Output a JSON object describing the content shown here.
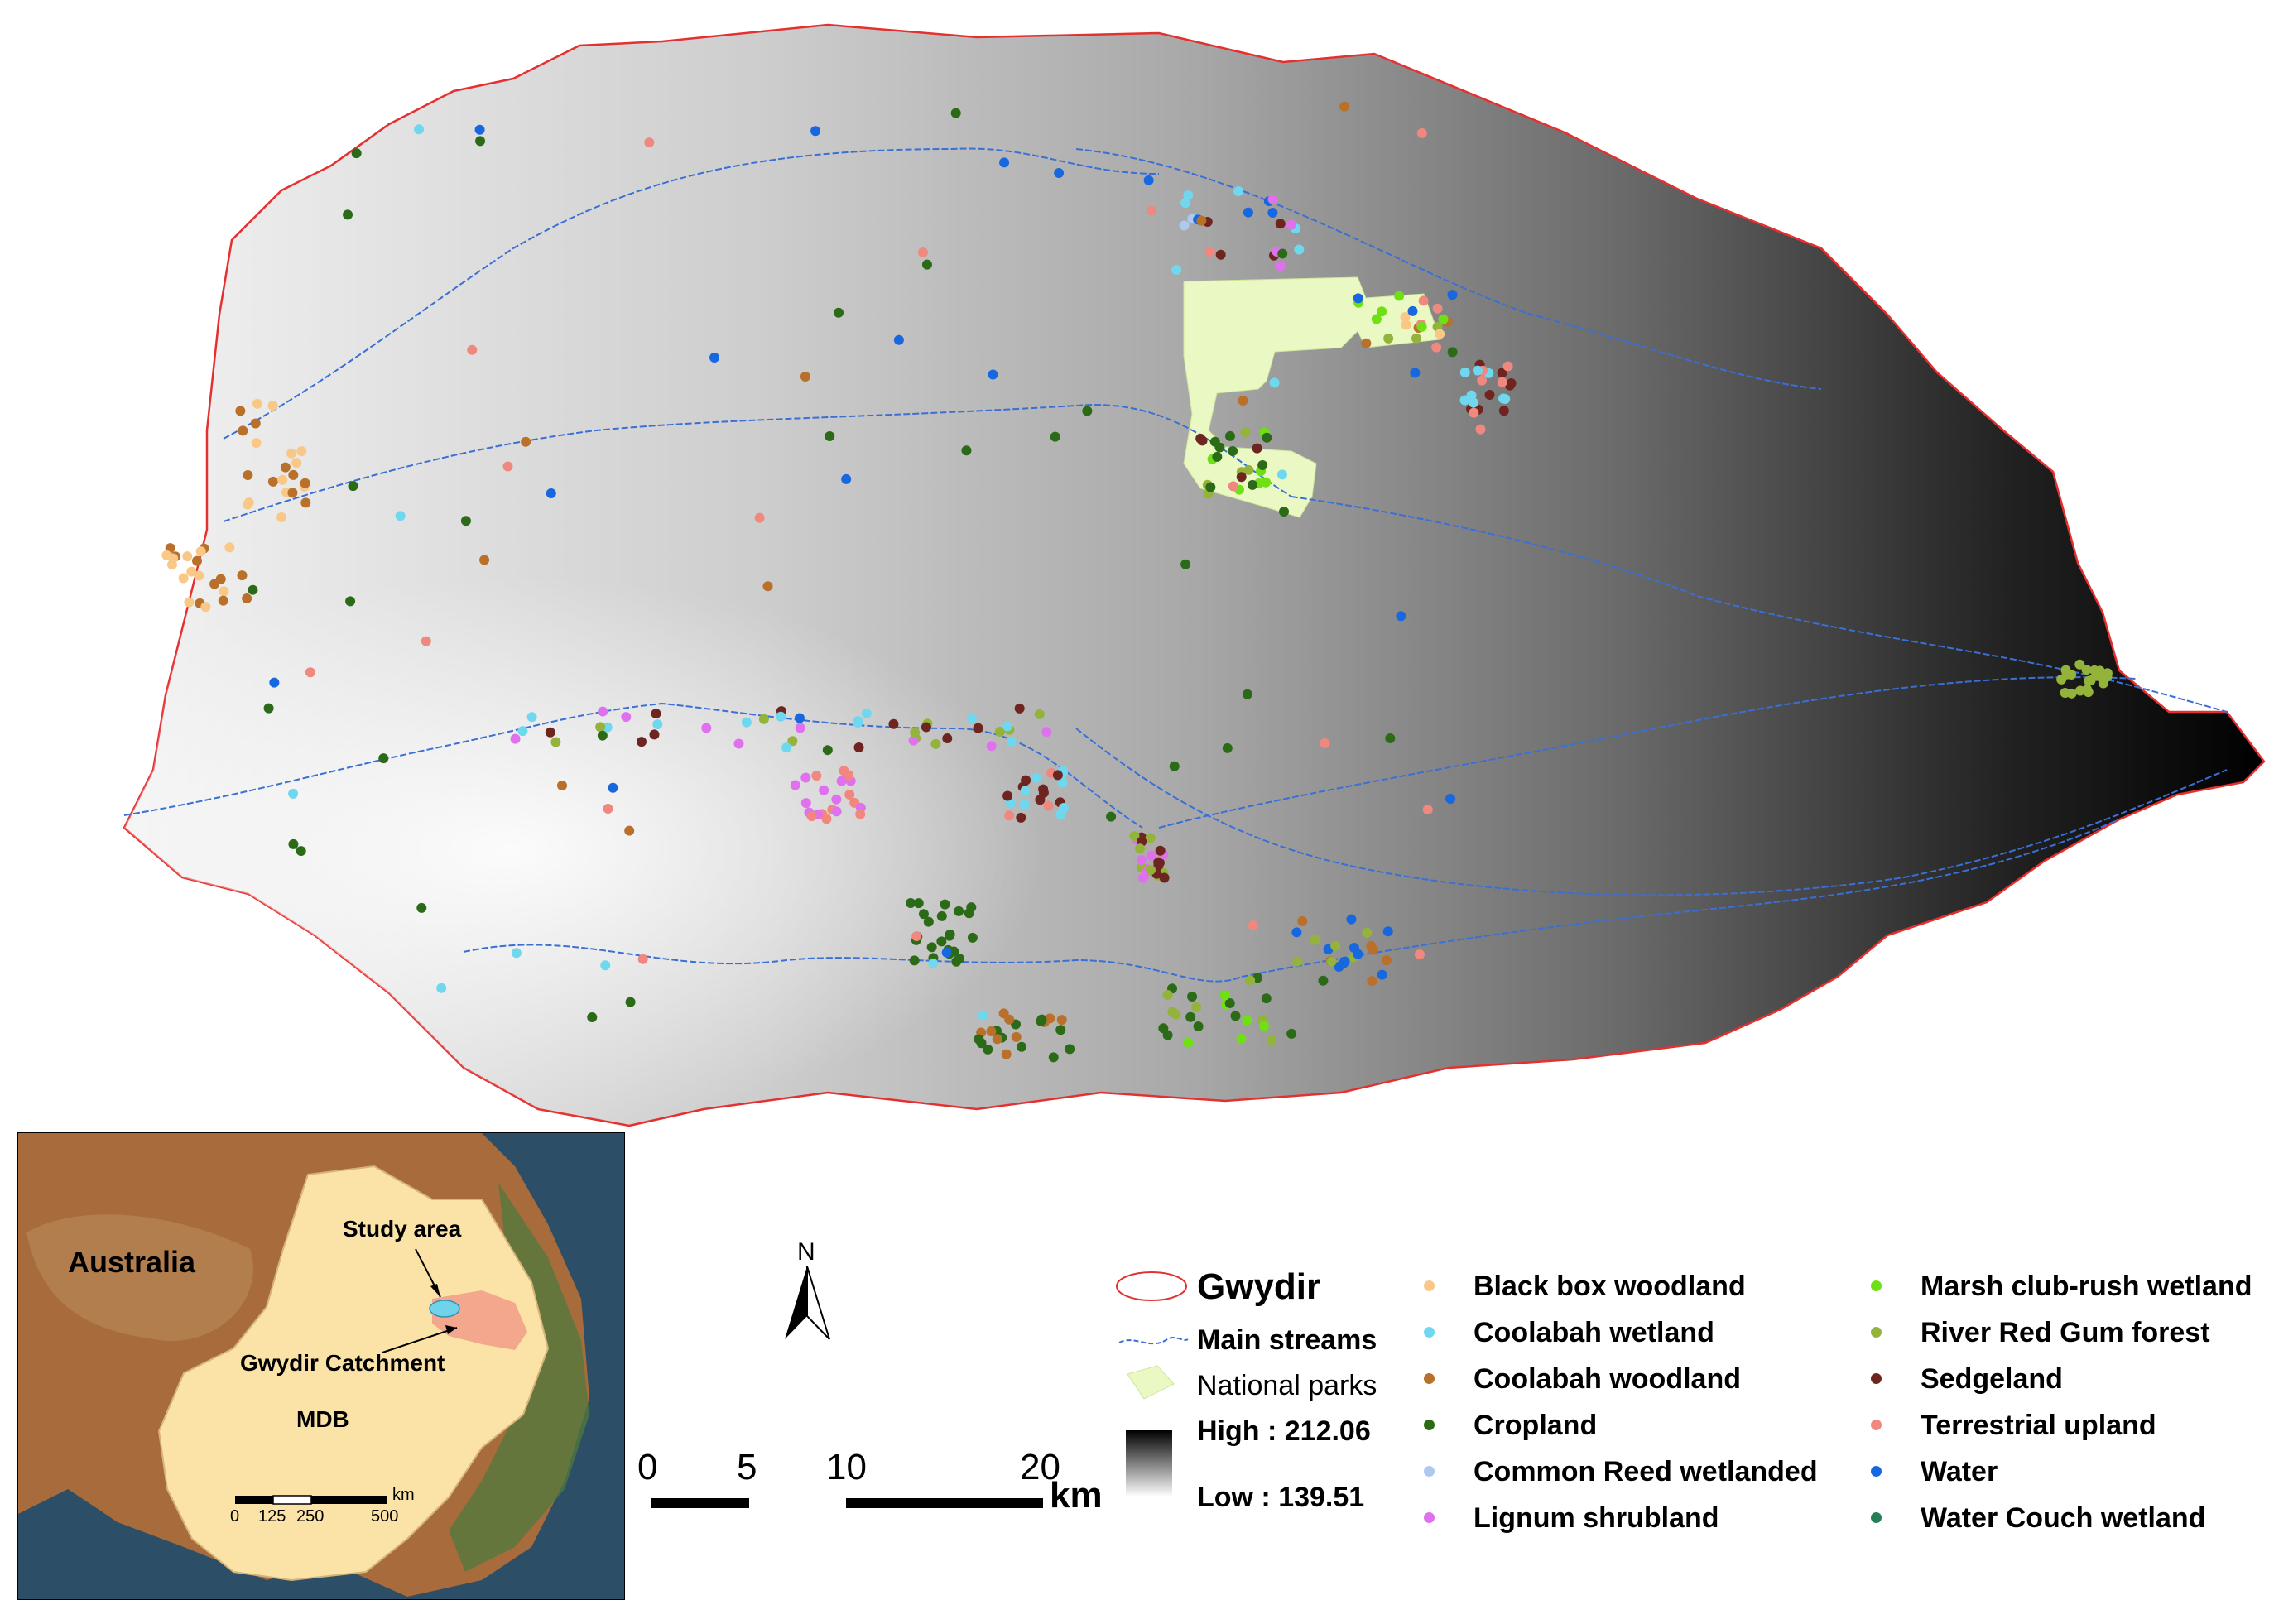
{
  "legend": {
    "catchment_label": "Gwydir",
    "streams_label": "Main streams",
    "parks_label": "National parks",
    "high_label": "High : 212.06",
    "low_label": "Low : 139.51",
    "classes": [
      {
        "name": "Black box woodland",
        "color": "#f9c887"
      },
      {
        "name": "Coolabah wetland",
        "color": "#6fd8ee"
      },
      {
        "name": "Coolabah woodland",
        "color": "#b8702a"
      },
      {
        "name": "Cropland",
        "color": "#2b6b18"
      },
      {
        "name": "Common Reed wetlanded",
        "color": "#aec9ee"
      },
      {
        "name": "Lignum shrubland",
        "color": "#e071ee"
      },
      {
        "name": "Marsh club-rush wetland",
        "color": "#6fe014"
      },
      {
        "name": "River Red Gum forest",
        "color": "#94b33a"
      },
      {
        "name": "Sedgeland",
        "color": "#6e2520"
      },
      {
        "name": "Terrestrial upland",
        "color": "#f08880"
      },
      {
        "name": "Water",
        "color": "#1767de"
      },
      {
        "name": "Water Couch wetland",
        "color": "#25805a"
      }
    ]
  },
  "north_arrow": {
    "label": "N"
  },
  "scale_bar": {
    "ticks": [
      "0",
      "5",
      "10",
      "20"
    ],
    "unit": "km"
  },
  "inset": {
    "country_label": "Australia",
    "study_area_label": "Study area",
    "catchment_label": "Gwydir Catchment",
    "basin_label": "MDB",
    "scale_ticks": [
      "0",
      "125",
      "250",
      "500"
    ],
    "scale_unit": "km"
  }
}
